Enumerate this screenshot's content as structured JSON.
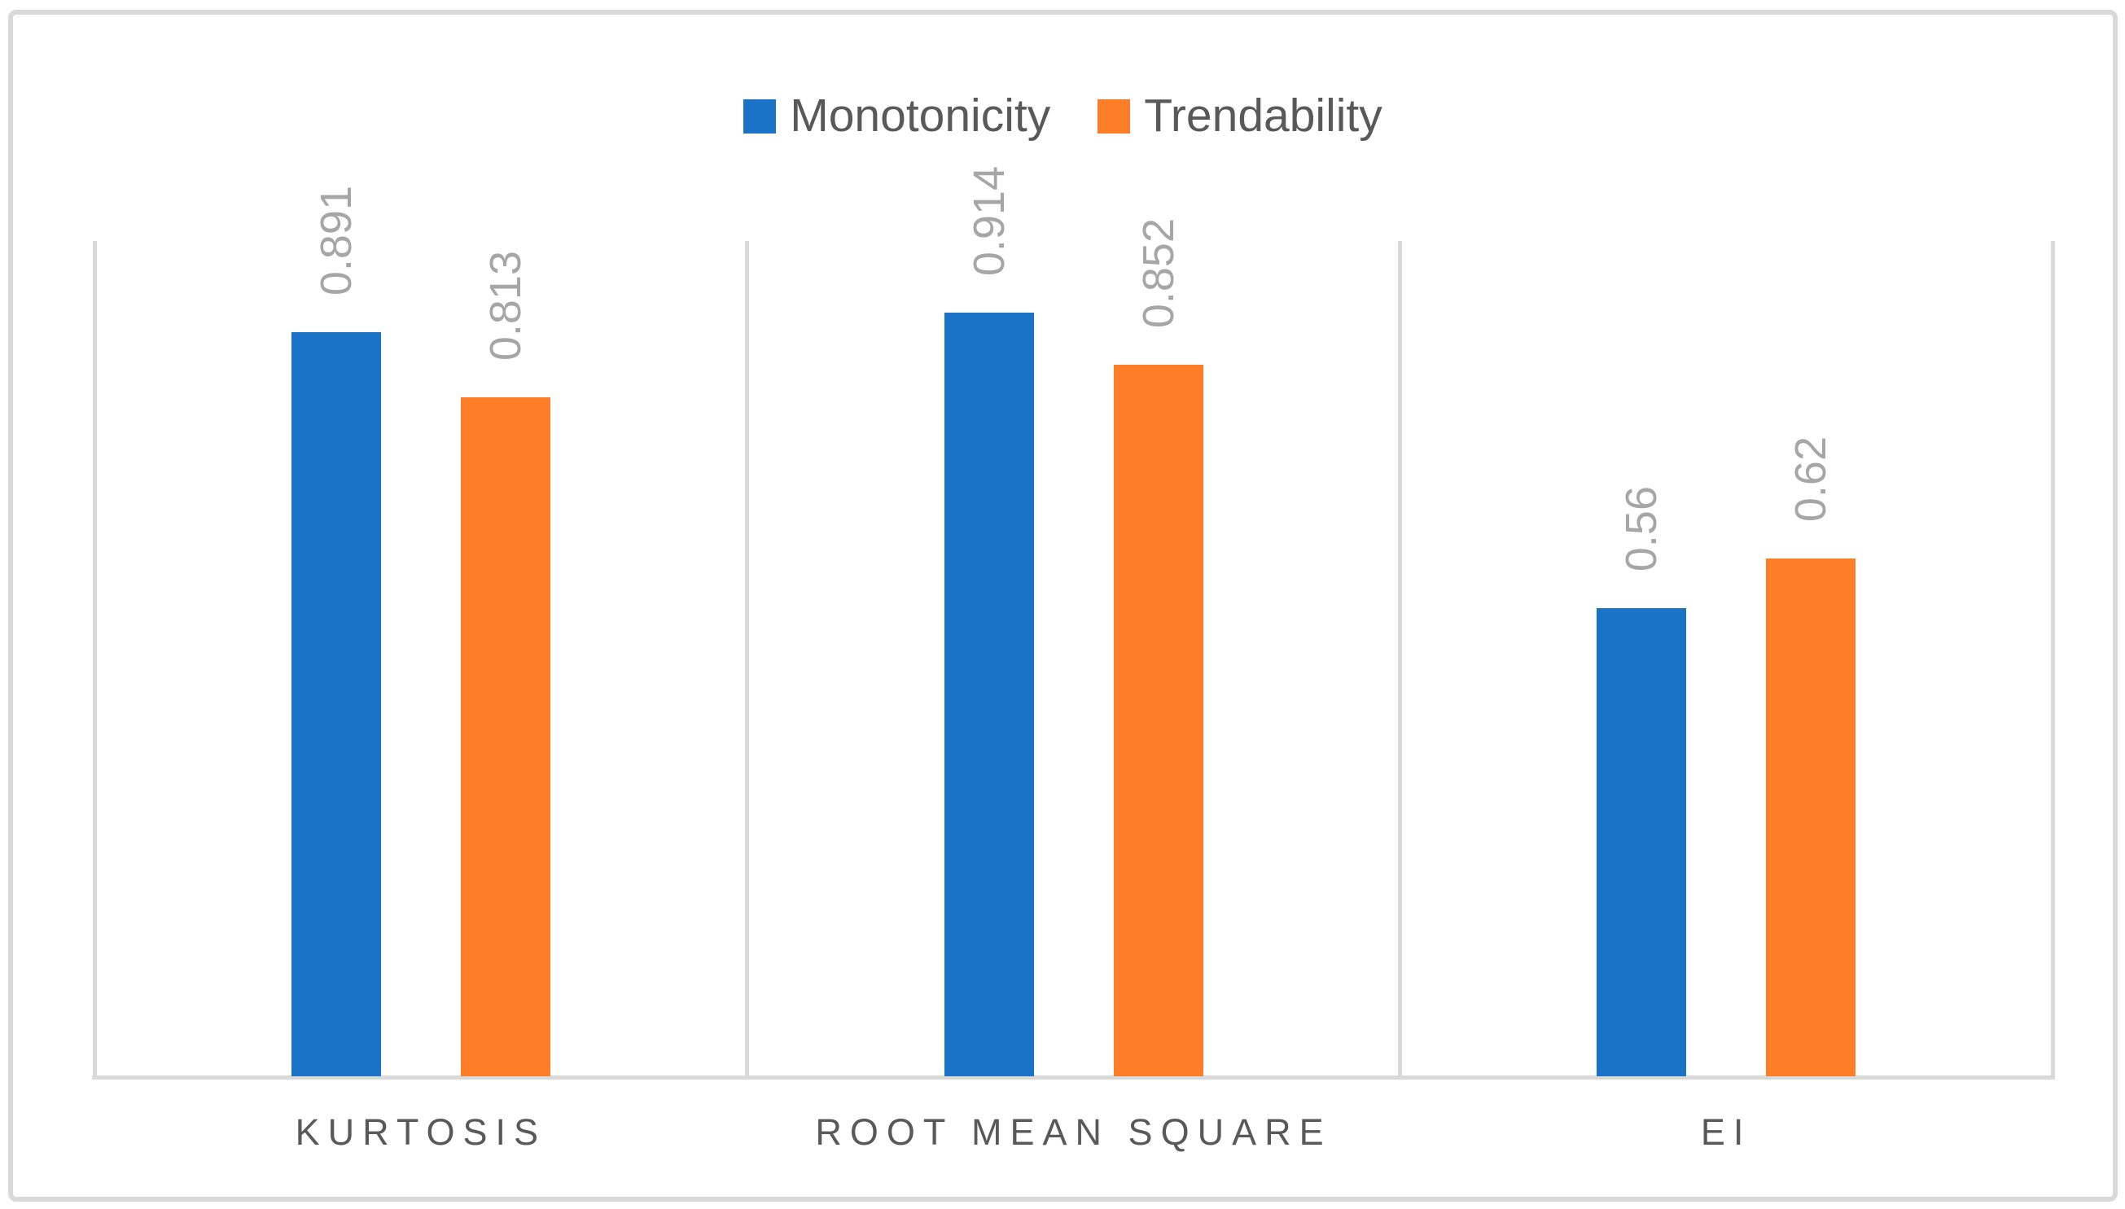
{
  "chart_data": {
    "type": "bar",
    "categories": [
      "KURTOSIS",
      "ROOT MEAN SQUARE",
      "EI"
    ],
    "series": [
      {
        "name": "Monotonicity",
        "color": "#1B73C8",
        "values": [
          0.891,
          0.914,
          0.56
        ],
        "value_labels": [
          "0.891",
          "0.914",
          "0.56"
        ]
      },
      {
        "name": "Trendability",
        "color": "#FD7E27",
        "values": [
          0.813,
          0.852,
          0.62
        ],
        "value_labels": [
          "0.813",
          "0.852",
          "0.62"
        ]
      }
    ],
    "title": "",
    "xlabel": "",
    "ylabel": "",
    "ylim": [
      0,
      1.0
    ],
    "legend_position": "top-center",
    "grid": "vertical category separators only",
    "gridline_color": "#D9D9D9",
    "data_label_color": "#A6A6A6",
    "axis_text_color": "#595959",
    "data_label_rotation": "90deg bottom-to-top"
  }
}
